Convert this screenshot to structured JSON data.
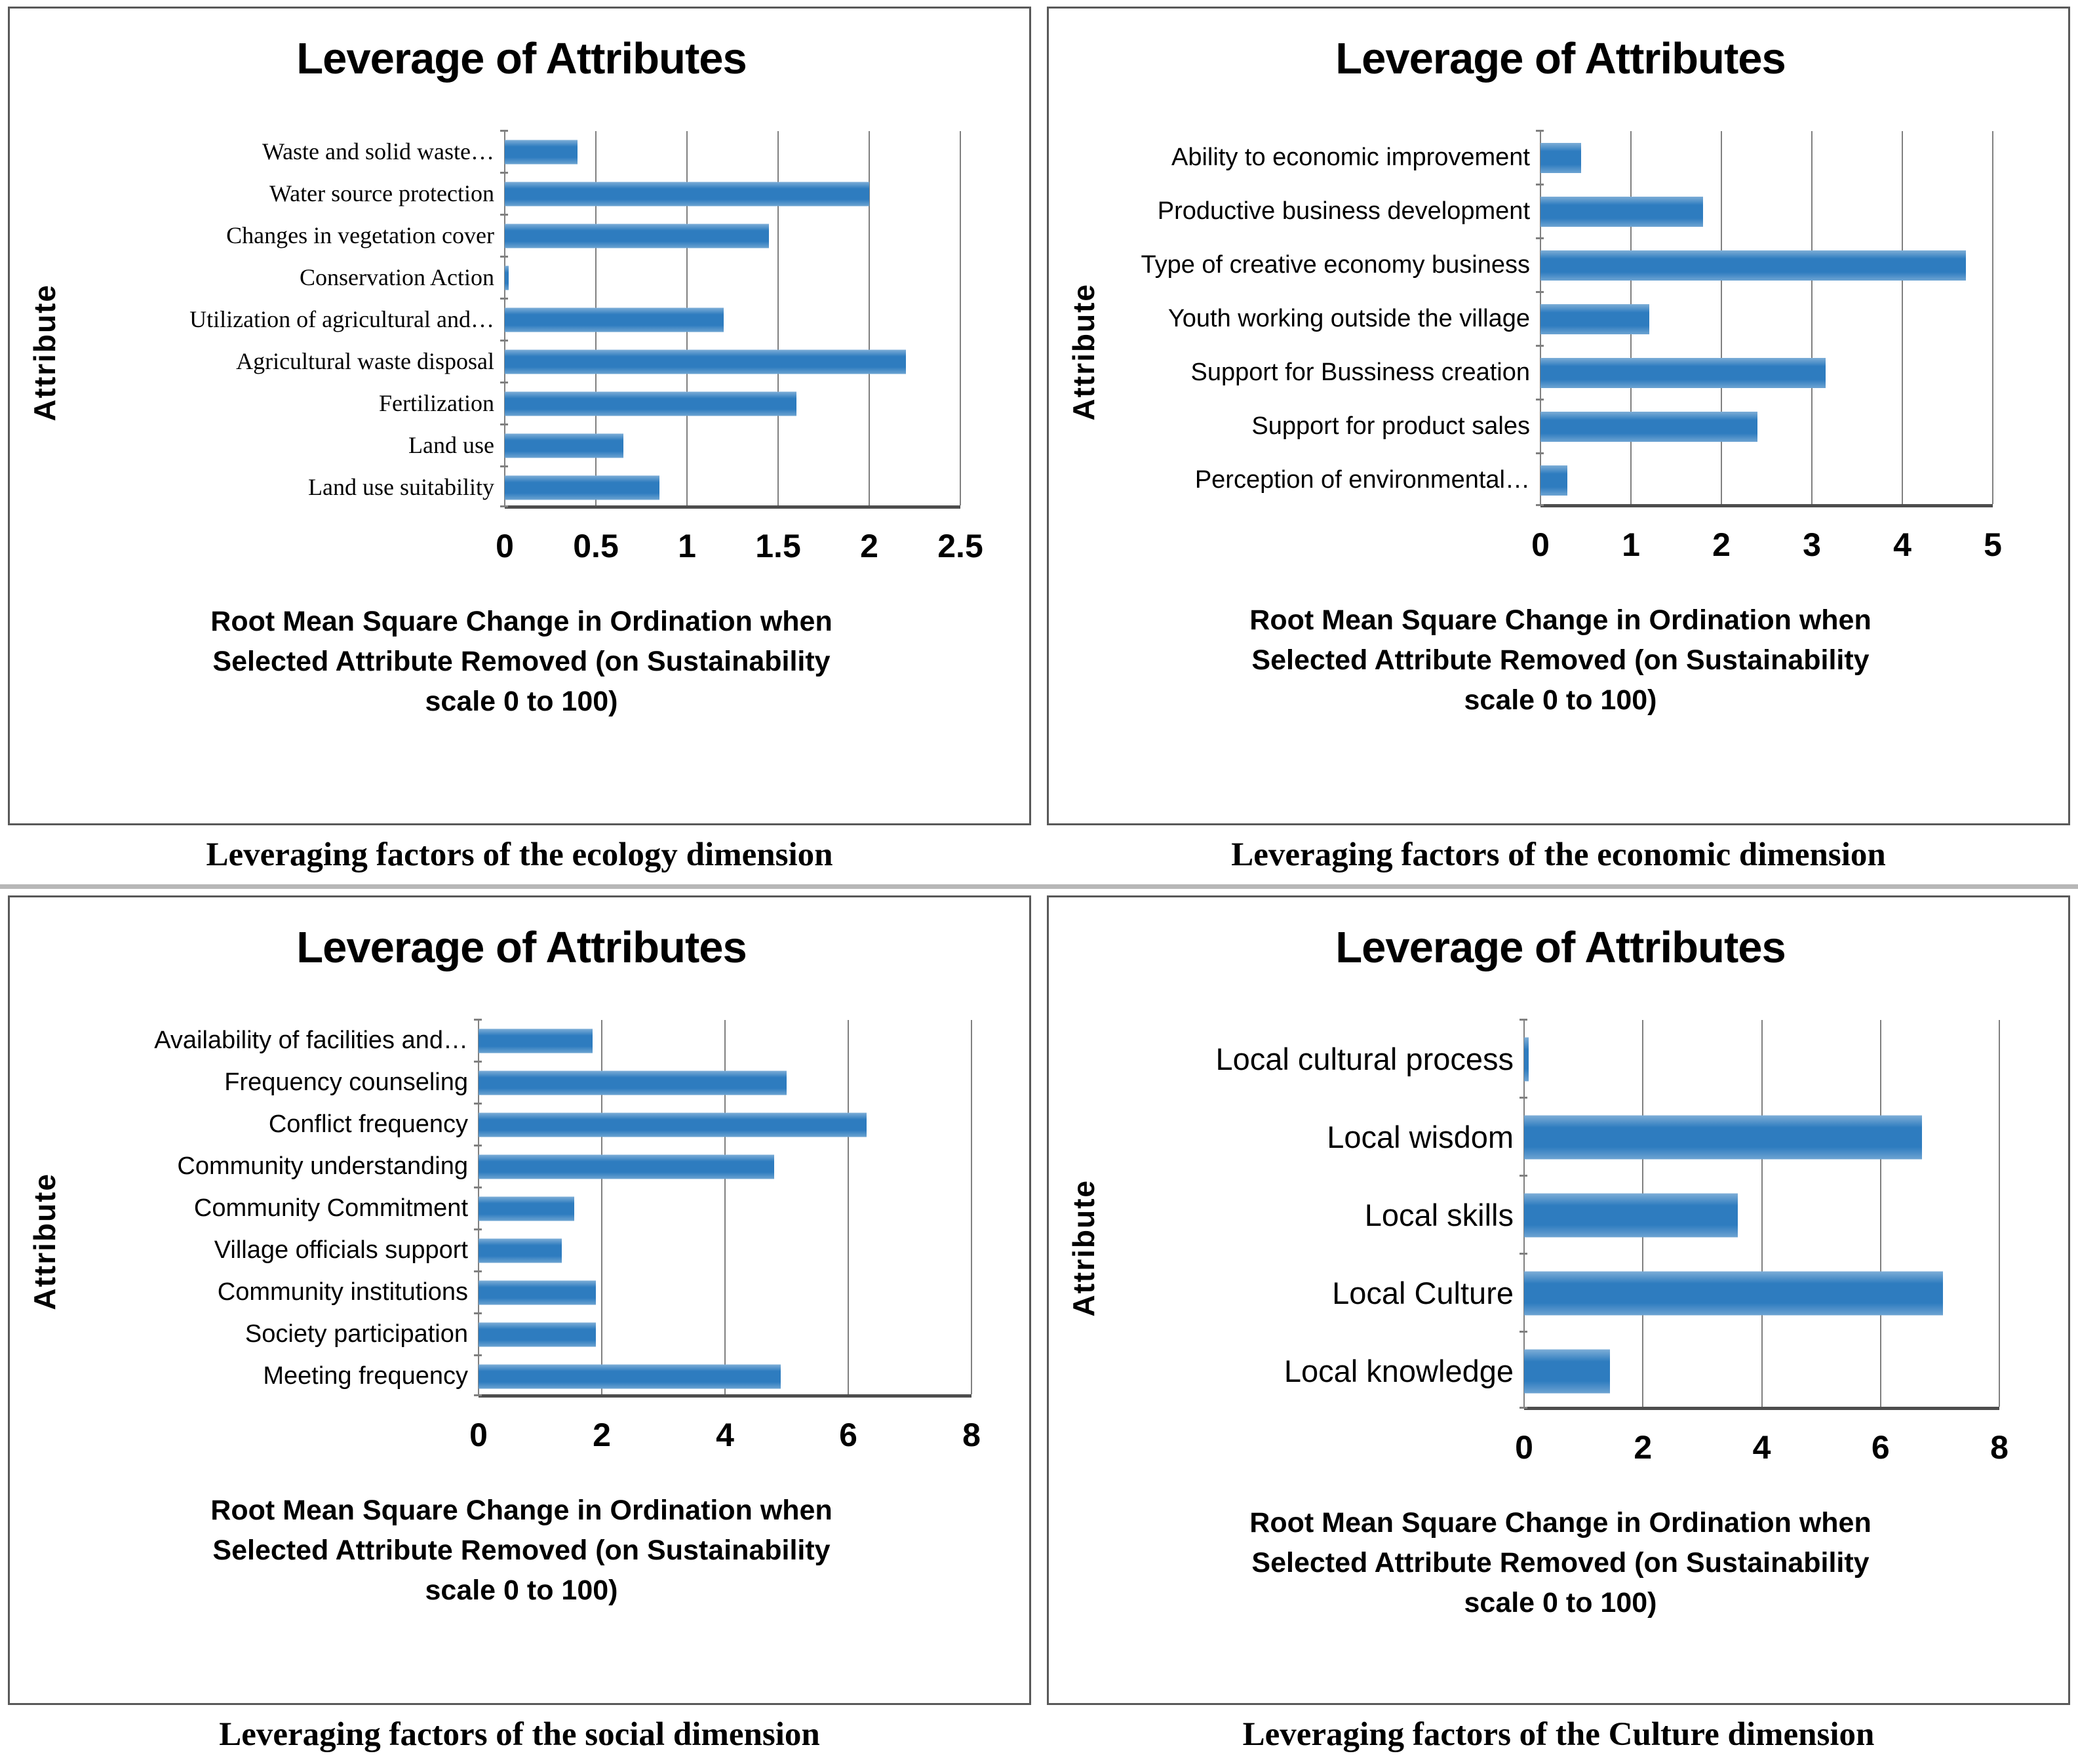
{
  "colors": {
    "bar": "#2e7cbf",
    "gridline": "#808080",
    "axis": "#4d4d4d",
    "panel_border": "#595959",
    "text": "#000000"
  },
  "chart_data": [
    {
      "type": "bar",
      "orientation": "horizontal",
      "title": "Leverage of Attributes",
      "ylabel": "Attribute",
      "xlabel": "Root Mean Square Change in Ordination when Selected Attribute Removed (on Sustainability scale 0 to 100)",
      "caption": "Leveraging factors of the ecology dimension",
      "categories": [
        "Waste and solid waste…",
        "Water source protection",
        "Changes in vegetation cover",
        "Conservation Action",
        "Utilization of agricultural and…",
        "Agricultural waste disposal",
        "Fertilization",
        "Land use",
        "Land use suitability"
      ],
      "values": [
        0.4,
        2.0,
        1.45,
        0.02,
        1.2,
        2.2,
        1.6,
        0.65,
        0.85
      ],
      "xlim": [
        0,
        2.5
      ],
      "xmax": 2.5,
      "ticks": [
        "0",
        "0.5",
        "1",
        "1.5",
        "2",
        "2.5"
      ],
      "grid": true,
      "bar_color": "#2e7cbf"
    },
    {
      "type": "bar",
      "orientation": "horizontal",
      "title": "Leverage of Attributes",
      "ylabel": "Attribute",
      "xlabel": "Root Mean Square Change in Ordination when Selected Attribute Removed (on Sustainability scale 0 to 100)",
      "caption": "Leveraging factors of the economic dimension",
      "categories": [
        "Ability to economic improvement",
        "Productive business development",
        "Type of creative economy business",
        "Youth working outside the village",
        "Support for Bussiness creation",
        "Support for product sales",
        "Perception of environmental…"
      ],
      "values": [
        0.45,
        1.8,
        4.7,
        1.2,
        3.15,
        2.4,
        0.3
      ],
      "xlim": [
        0,
        5
      ],
      "xmax": 5,
      "ticks": [
        "0",
        "1",
        "2",
        "3",
        "4",
        "5"
      ],
      "grid": true,
      "bar_color": "#2e7cbf"
    },
    {
      "type": "bar",
      "orientation": "horizontal",
      "title": "Leverage of Attributes",
      "ylabel": "Attribute",
      "xlabel": "Root Mean Square Change in Ordination when Selected Attribute Removed (on Sustainability scale 0 to 100)",
      "caption": "Leveraging factors of the social dimension",
      "categories": [
        "Availability of facilities and…",
        "Frequency counseling",
        "Conflict frequency",
        "Community understanding",
        "Community Commitment",
        "Village officials support",
        "Community institutions",
        "Society participation",
        "Meeting frequency"
      ],
      "values": [
        1.85,
        5.0,
        6.3,
        4.8,
        1.55,
        1.35,
        1.9,
        1.9,
        4.9
      ],
      "xlim": [
        0,
        8
      ],
      "xmax": 8,
      "ticks": [
        "0",
        "2",
        "4",
        "6",
        "8"
      ],
      "grid": true,
      "bar_color": "#2e7cbf"
    },
    {
      "type": "bar",
      "orientation": "horizontal",
      "title": "Leverage of Attributes",
      "ylabel": "Attribute",
      "xlabel": "Root Mean Square Change in Ordination when Selected Attribute Removed (on Sustainability scale 0 to 100)",
      "caption": "Leveraging factors of the Culture dimension",
      "categories": [
        "Local cultural process",
        "Local wisdom",
        "Local skills",
        "Local Culture",
        "Local knowledge"
      ],
      "values": [
        0.08,
        6.7,
        3.6,
        7.05,
        1.45
      ],
      "xlim": [
        0,
        8
      ],
      "xmax": 8,
      "ticks": [
        "0",
        "2",
        "4",
        "6",
        "8"
      ],
      "grid": true,
      "bar_color": "#2e7cbf"
    }
  ]
}
